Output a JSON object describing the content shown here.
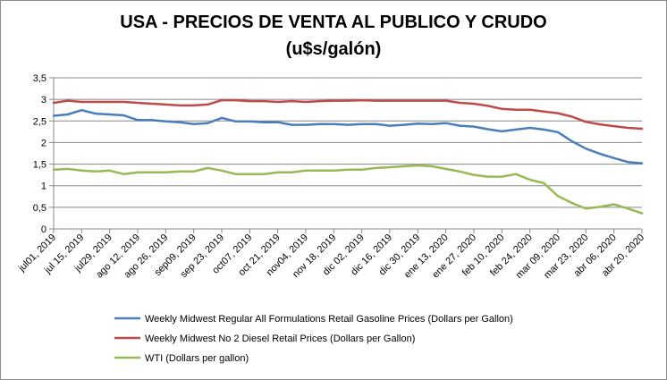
{
  "chart_data": {
    "type": "line",
    "title_line1": "USA - PRECIOS DE VENTA AL PUBLICO Y CRUDO",
    "title_line2": "(u$s/galón)",
    "xlabel": "",
    "ylabel": "",
    "ylim": [
      0,
      3.5
    ],
    "yticks": [
      "0",
      "0,5",
      "1",
      "1,5",
      "2",
      "2,5",
      "3",
      "3,5"
    ],
    "grid": true,
    "legend_position": "bottom",
    "x_labels": [
      "jul01, 2019",
      "jul 15, 2019",
      "jul29, 2019",
      "ago 12, 2019",
      "ago 26, 2019",
      "sep09, 2019",
      "sep 23, 2019",
      "oct07, 2019",
      "oct 21, 2019",
      "nov04, 2019",
      "nov 18, 2019",
      "dic 02, 2019",
      "dic 16, 2019",
      "dic 30, 2019",
      "ene 13, 2020",
      "ene 27, 2020",
      "feb 10, 2020",
      "feb 24, 2020",
      "mar 09, 2020",
      "mar 23, 2020",
      "abr 06, 2020",
      "abr 20, 2020"
    ],
    "series": [
      {
        "name": "Weekly Midwest Regular All Formulations Retail Gasoline Prices  (Dollars per Gallon)",
        "color": "#4a7ebb",
        "values": [
          2.62,
          2.65,
          2.75,
          2.67,
          2.65,
          2.63,
          2.52,
          2.52,
          2.49,
          2.47,
          2.43,
          2.45,
          2.57,
          2.49,
          2.49,
          2.47,
          2.47,
          2.41,
          2.41,
          2.43,
          2.43,
          2.41,
          2.43,
          2.43,
          2.39,
          2.41,
          2.44,
          2.43,
          2.45,
          2.39,
          2.37,
          2.31,
          2.26,
          2.3,
          2.34,
          2.3,
          2.24,
          2.03,
          1.86,
          1.74,
          1.64,
          1.55,
          1.52
        ]
      },
      {
        "name": "Weekly Midwest No 2 Diesel Retail Prices  (Dollars per Gallon)",
        "color": "#be4b48",
        "values": [
          2.92,
          2.97,
          2.94,
          2.94,
          2.94,
          2.94,
          2.92,
          2.9,
          2.88,
          2.86,
          2.86,
          2.88,
          2.98,
          2.98,
          2.96,
          2.96,
          2.94,
          2.96,
          2.94,
          2.96,
          2.97,
          2.97,
          2.98,
          2.97,
          2.97,
          2.97,
          2.97,
          2.97,
          2.97,
          2.92,
          2.9,
          2.85,
          2.78,
          2.76,
          2.76,
          2.72,
          2.68,
          2.6,
          2.48,
          2.42,
          2.38,
          2.34,
          2.32
        ]
      },
      {
        "name": "WTI (Dollars per gallon)",
        "color": "#98b954",
        "values": [
          1.37,
          1.39,
          1.35,
          1.33,
          1.35,
          1.27,
          1.31,
          1.31,
          1.31,
          1.33,
          1.33,
          1.41,
          1.35,
          1.27,
          1.27,
          1.27,
          1.31,
          1.31,
          1.35,
          1.35,
          1.35,
          1.37,
          1.37,
          1.41,
          1.43,
          1.45,
          1.47,
          1.45,
          1.39,
          1.33,
          1.25,
          1.21,
          1.21,
          1.27,
          1.14,
          1.06,
          0.76,
          0.6,
          0.47,
          0.51,
          0.57,
          0.47,
          0.36
        ]
      }
    ]
  }
}
